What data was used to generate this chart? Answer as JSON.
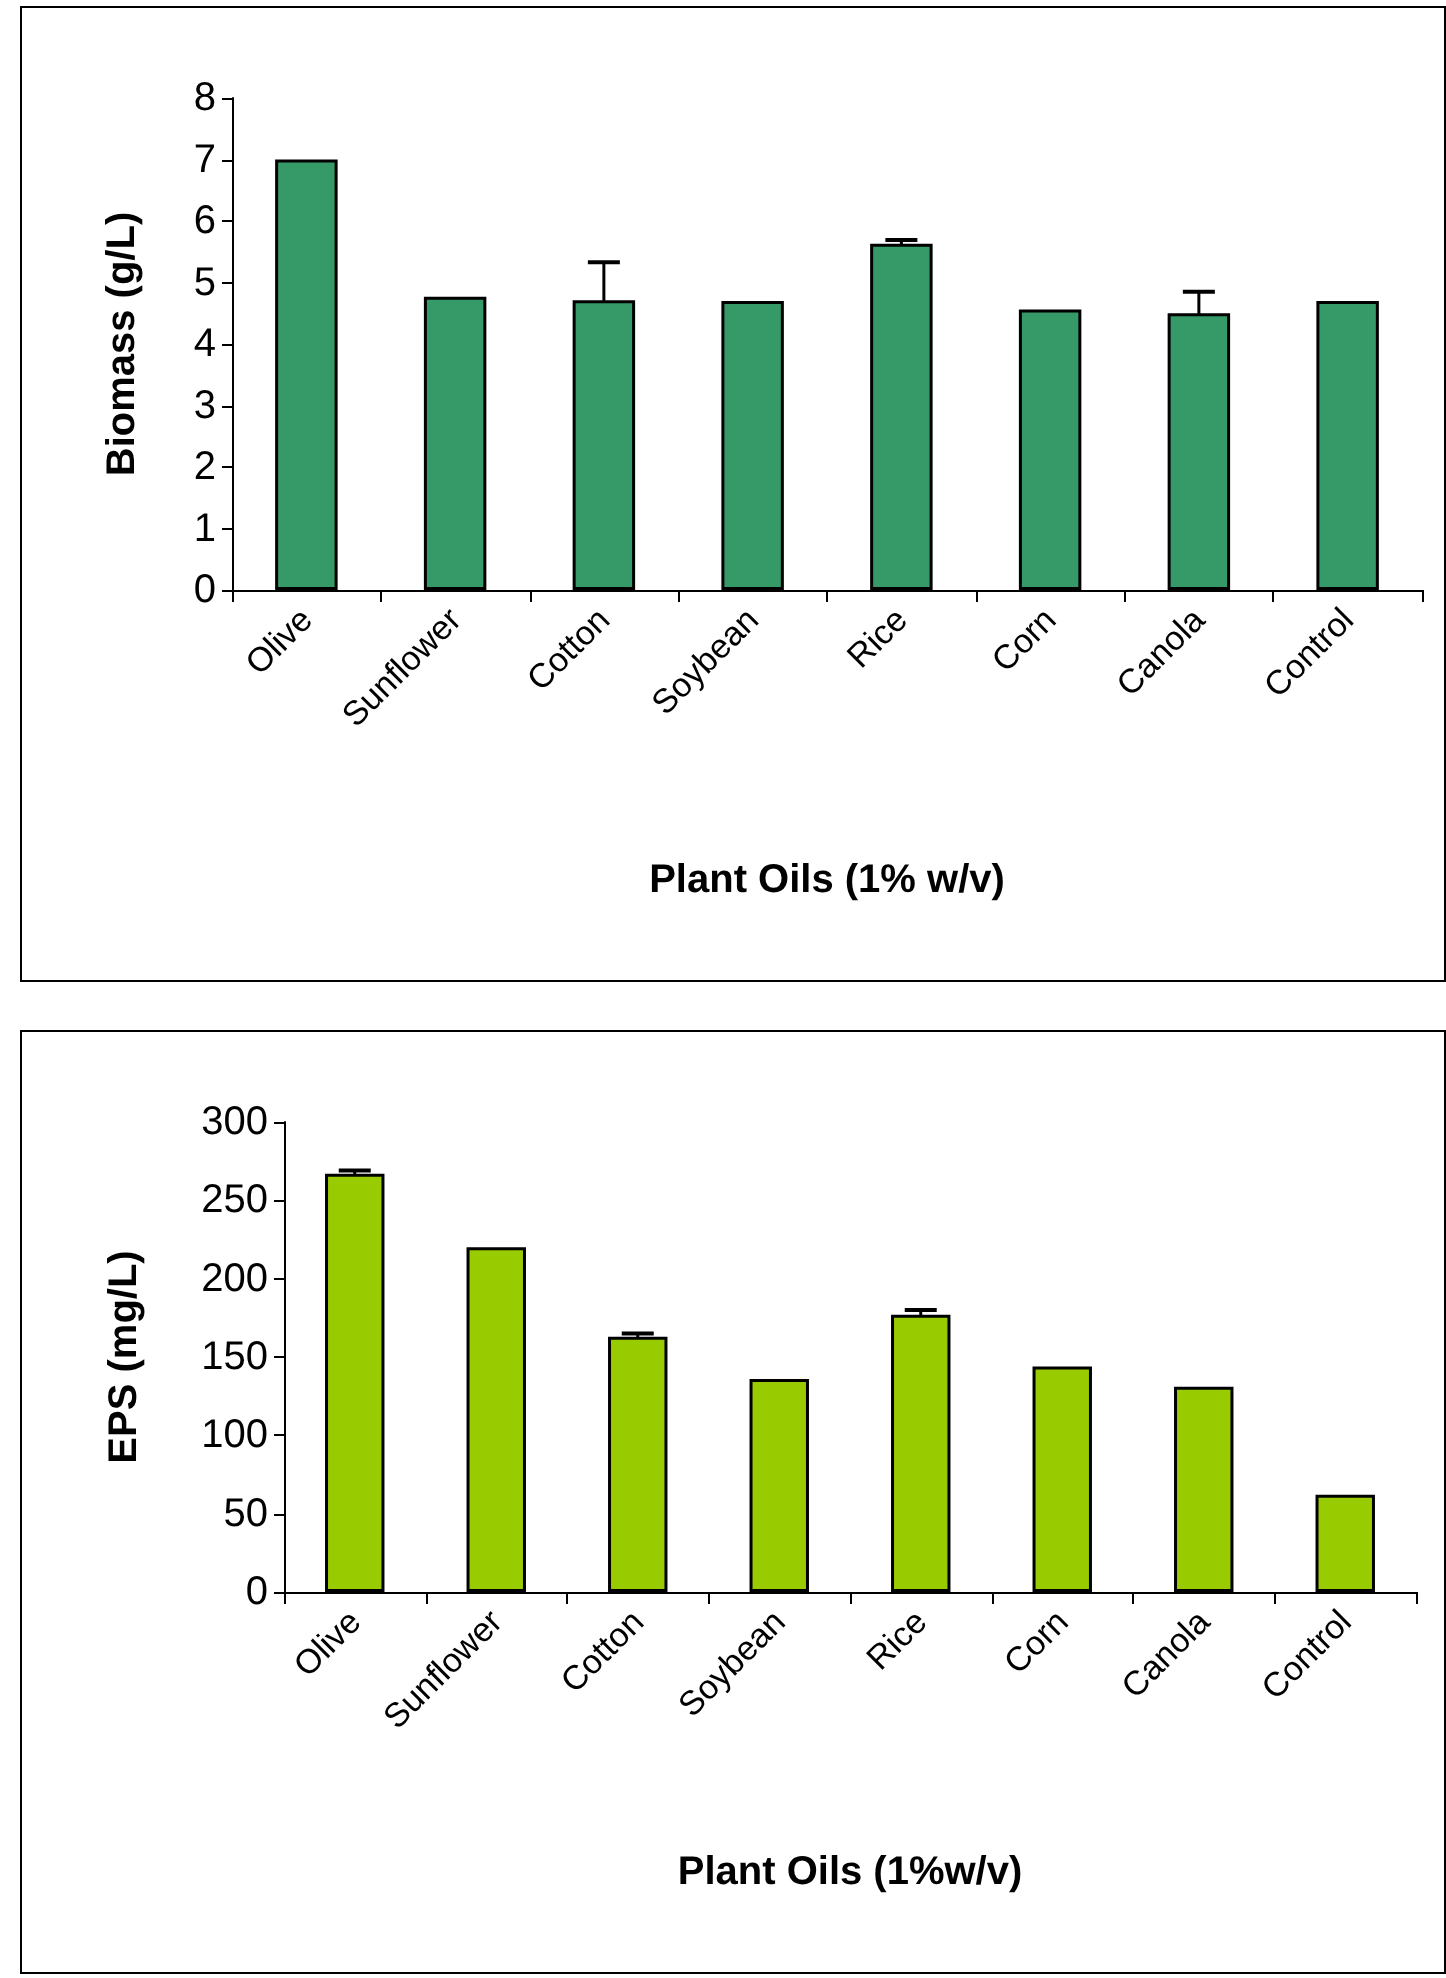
{
  "chart_data": [
    {
      "type": "bar",
      "ylabel": "Biomass (g/L)",
      "xlabel": "Plant Oils (1% w/v)",
      "categories": [
        "Olive",
        "Sunflower",
        "Cotton",
        "Soybean",
        "Rice",
        "Corn",
        "Canola",
        "Control"
      ],
      "color": "#359a68",
      "values": [
        7.0,
        4.77,
        4.71,
        4.7,
        5.63,
        4.56,
        4.5,
        4.7
      ],
      "errors": [
        null,
        null,
        0.62,
        null,
        0.06,
        null,
        0.35,
        null
      ],
      "ylim": [
        0,
        8
      ],
      "yticks": [
        0,
        1,
        2,
        3,
        4,
        5,
        6,
        7,
        8
      ],
      "grid": false
    },
    {
      "type": "bar",
      "ylabel": "EPS (mg/L)",
      "xlabel": "Plant Oils (1%w/v)",
      "categories": [
        "Olive",
        "Sunflower",
        "Cotton",
        "Soybean",
        "Rice",
        "Corn",
        "Canola",
        "Control"
      ],
      "color": "#99cc00",
      "values": [
        267,
        220,
        163,
        136,
        177,
        144,
        131,
        62
      ],
      "errors": [
        2,
        null,
        2,
        null,
        3,
        null,
        null,
        null
      ],
      "ylim": [
        0,
        300
      ],
      "yticks": [
        0,
        50,
        100,
        150,
        200,
        250,
        300
      ],
      "grid": false
    }
  ]
}
